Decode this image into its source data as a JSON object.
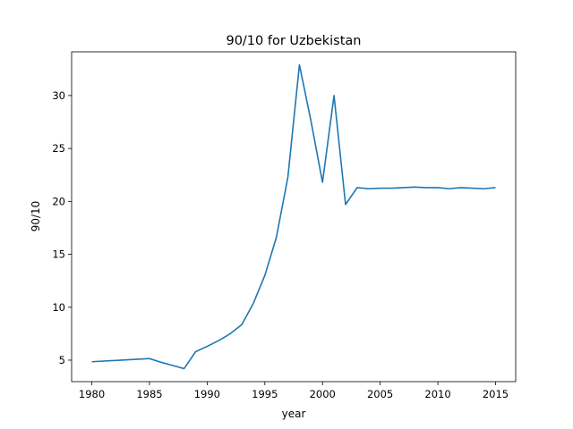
{
  "chart_data": {
    "type": "line",
    "title": "90/10 for Uzbekistan",
    "xlabel": "year",
    "ylabel": "90/10",
    "xlim": [
      1978.25,
      2016.75
    ],
    "ylim": [
      2.97,
      34.13
    ],
    "xticks": [
      1980,
      1985,
      1990,
      1995,
      2000,
      2005,
      2010,
      2015
    ],
    "yticks": [
      5,
      10,
      15,
      20,
      25,
      30
    ],
    "grid": false,
    "line_color": "#1f77b4",
    "series": [
      {
        "x": [
          1980,
          1985,
          1986,
          1987,
          1988,
          1989,
          1990,
          1991,
          1992,
          1993,
          1994,
          1995,
          1996,
          1997,
          1998,
          1999,
          2000,
          2001,
          2002,
          2003,
          2004,
          2005,
          2006,
          2007,
          2008,
          2009,
          2010,
          2011,
          2012,
          2013,
          2014,
          2015
        ],
        "values": [
          4.85,
          5.15,
          4.8,
          4.5,
          4.2,
          5.8,
          6.3,
          6.85,
          7.5,
          8.35,
          10.35,
          13.0,
          16.6,
          22.3,
          32.9,
          27.6,
          21.8,
          30.0,
          19.7,
          21.3,
          21.2,
          21.25,
          21.25,
          21.3,
          21.35,
          21.3,
          21.3,
          21.2,
          21.3,
          21.25,
          21.2,
          21.3
        ]
      }
    ]
  }
}
